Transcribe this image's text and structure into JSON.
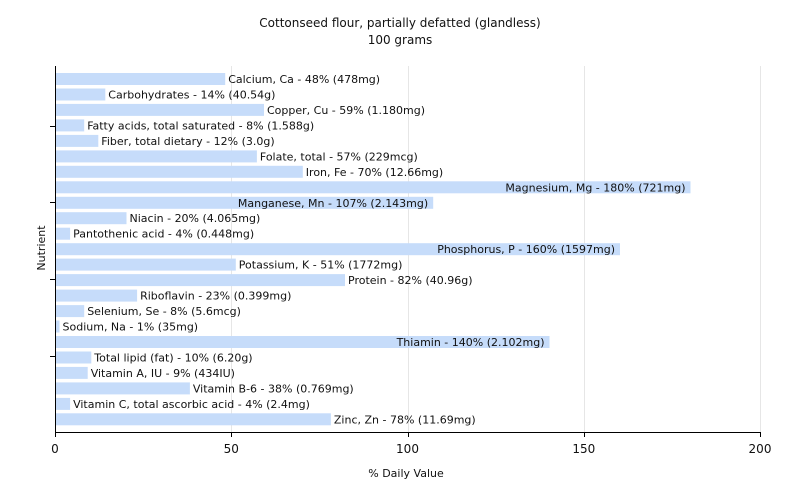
{
  "chart_data": {
    "type": "bar",
    "orientation": "horizontal",
    "title": "Cottonseed flour, partially defatted (glandless)",
    "subtitle": "100 grams",
    "xlabel": "% Daily Value",
    "ylabel": "Nutrient",
    "xlim": [
      0,
      200
    ],
    "xticks": [
      0,
      50,
      100,
      150,
      200
    ],
    "grid": true,
    "bar_color": "#c6dcfa",
    "categories": [
      "Calcium, Ca",
      "Carbohydrates",
      "Copper, Cu",
      "Fatty acids, total saturated",
      "Fiber, total dietary",
      "Folate, total",
      "Iron, Fe",
      "Magnesium, Mg",
      "Manganese, Mn",
      "Niacin",
      "Pantothenic acid",
      "Phosphorus, P",
      "Potassium, K",
      "Protein",
      "Riboflavin",
      "Selenium, Se",
      "Sodium, Na",
      "Thiamin",
      "Total lipid (fat)",
      "Vitamin A, IU",
      "Vitamin B-6",
      "Vitamin C, total ascorbic acid",
      "Zinc, Zn"
    ],
    "values": [
      48,
      14,
      59,
      8,
      12,
      57,
      70,
      180,
      107,
      20,
      4,
      160,
      51,
      82,
      23,
      8,
      1,
      140,
      10,
      9,
      38,
      4,
      78
    ],
    "labels": [
      "Calcium, Ca - 48% (478mg)",
      "Carbohydrates - 14% (40.54g)",
      "Copper, Cu - 59% (1.180mg)",
      "Fatty acids, total saturated - 8% (1.588g)",
      "Fiber, total dietary - 12% (3.0g)",
      "Folate, total - 57% (229mcg)",
      "Iron, Fe - 70% (12.66mg)",
      "Magnesium, Mg - 180% (721mg)",
      "Manganese, Mn - 107% (2.143mg)",
      "Niacin - 20% (4.065mg)",
      "Pantothenic acid - 4% (0.448mg)",
      "Phosphorus, P - 160% (1597mg)",
      "Potassium, K - 51% (1772mg)",
      "Protein - 82% (40.96g)",
      "Riboflavin - 23% (0.399mg)",
      "Selenium, Se - 8% (5.6mcg)",
      "Sodium, Na - 1% (35mg)",
      "Thiamin - 140% (2.102mg)",
      "Total lipid (fat) - 10% (6.20g)",
      "Vitamin A, IU - 9% (434IU)",
      "Vitamin B-6 - 38% (0.769mg)",
      "Vitamin C, total ascorbic acid - 4% (2.4mg)",
      "Zinc, Zn - 78% (11.69mg)"
    ]
  }
}
